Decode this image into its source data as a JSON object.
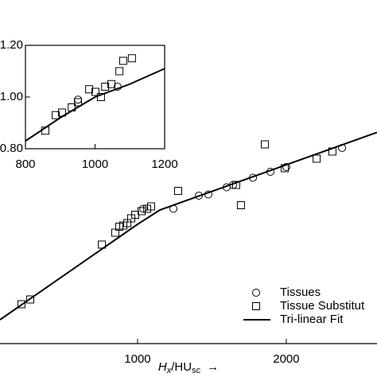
{
  "chart_data": [
    {
      "type": "scatter",
      "xlim": [
        75,
        2610
      ],
      "ylim": [
        0,
        2.88
      ],
      "xticks": [
        1000,
        2000
      ],
      "xlabel": {
        "main": "H",
        "sub": "x",
        "rest": "/HU",
        "sub2": "sc",
        "arrow": "→"
      },
      "legend": "lower right",
      "series": [
        {
          "name": "Tissues",
          "marker": "circle",
          "color": "#000000",
          "x": [
            1038,
            1241,
            1412,
            1476,
            1599,
            1642,
            1776,
            1893,
            2000,
            2375
          ],
          "values": [
            1.13,
            1.13,
            1.24,
            1.25,
            1.31,
            1.33,
            1.39,
            1.44,
            1.48,
            1.64
          ]
        },
        {
          "name": "Tissue Substitut",
          "marker": "square",
          "color": "#000000",
          "x": [
            219,
            278,
            760,
            850,
            877,
            904,
            931,
            957,
            984,
            1027,
            1064,
            1091,
            1273,
            1663,
            1695,
            1856,
            1990,
            2204,
            2310
          ],
          "values": [
            0.33,
            0.37,
            0.83,
            0.93,
            0.98,
            0.99,
            1.01,
            1.05,
            1.08,
            1.11,
            1.13,
            1.15,
            1.28,
            1.33,
            1.16,
            1.67,
            1.47,
            1.55,
            1.61
          ]
        },
        {
          "name": "Tri-linear Fit",
          "marker": "line",
          "color": "#000000",
          "x": [
            75,
            1000,
            1150,
            2610
          ],
          "values": [
            0.2,
            1.0,
            1.12,
            1.77
          ]
        }
      ]
    },
    {
      "type": "scatter",
      "xlim": [
        800,
        1200
      ],
      "ylim": [
        0.8,
        1.2
      ],
      "xticks": [
        800,
        1000,
        1200
      ],
      "yticks": [
        {
          "value": 0.8,
          "label": "0.80"
        },
        {
          "value": 1.0,
          "label": "1.00"
        },
        {
          "value": 1.2,
          "label": "1.20"
        }
      ],
      "series": [
        {
          "marker": "square",
          "color": "#000000",
          "x": [
            857,
            887,
            905,
            933,
            951,
            983,
            1001,
            1017,
            1029,
            1047,
            1070,
            1081,
            1106
          ],
          "values": [
            0.87,
            0.93,
            0.94,
            0.96,
            0.98,
            1.03,
            1.02,
            1.0,
            1.04,
            1.05,
            1.1,
            1.14,
            1.15
          ]
        },
        {
          "marker": "circle",
          "color": "#000000",
          "x": [
            951,
            1065
          ],
          "values": [
            0.99,
            1.04
          ]
        },
        {
          "marker": "line",
          "color": "#000000",
          "x": [
            800,
            900,
            1000,
            1100,
            1200
          ],
          "values": [
            0.83,
            0.92,
            1.0,
            1.05,
            1.11
          ]
        }
      ]
    }
  ]
}
